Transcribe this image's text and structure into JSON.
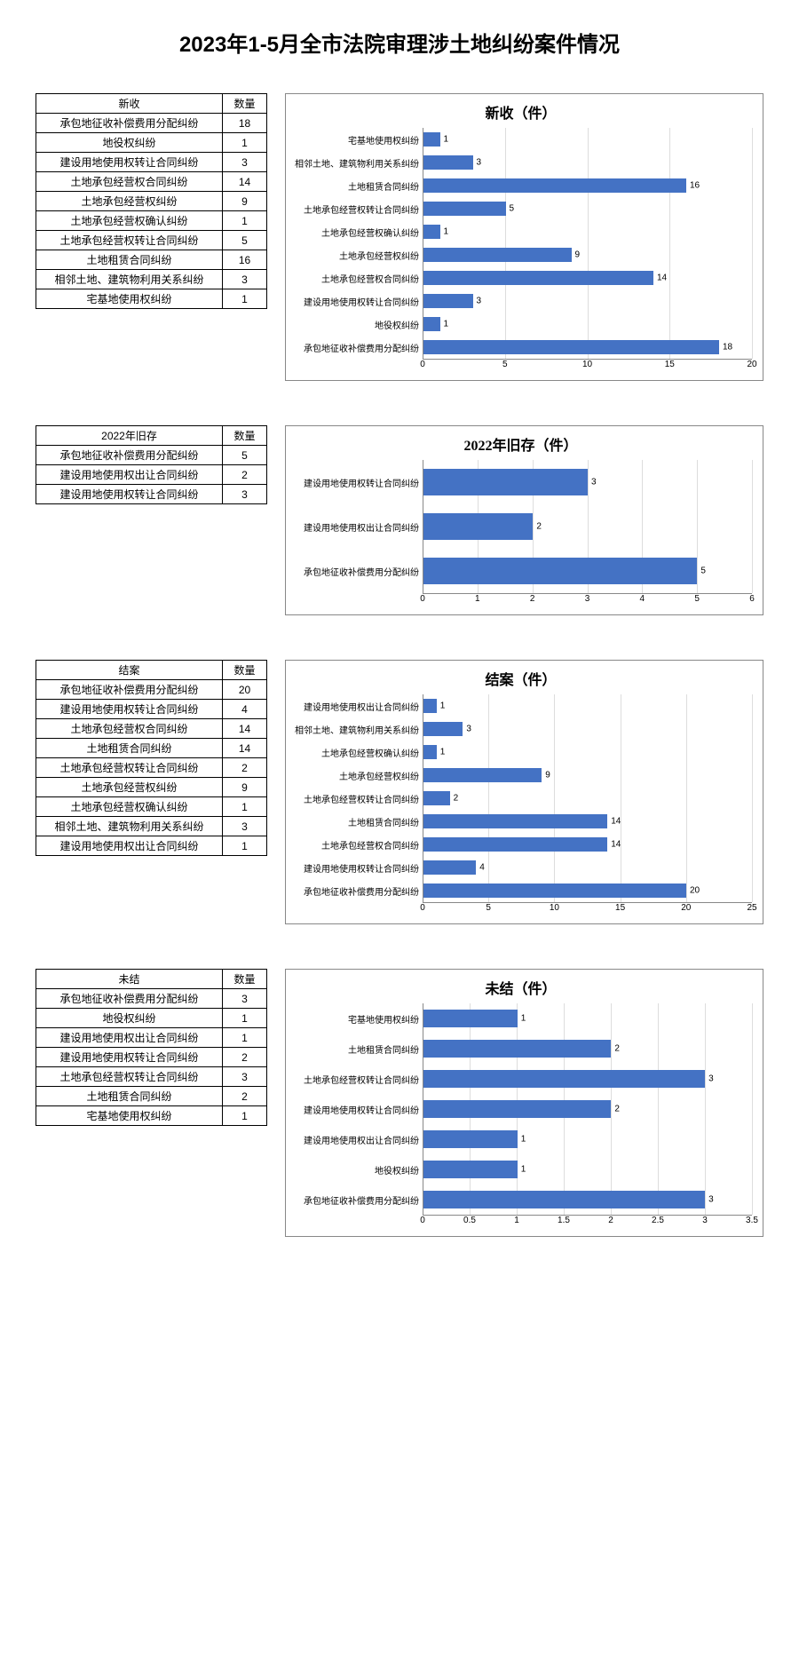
{
  "title": "2023年1-5月全市法院审理涉土地纠纷案件情况",
  "colors": {
    "bar": "#4472c4",
    "grid": "#dddddd",
    "border": "#888888",
    "table_border": "#000000"
  },
  "sections": [
    {
      "table_header": "新收",
      "count_header": "数量",
      "chart_title": "新收（件）",
      "xmax": 20,
      "xtick_step": 5,
      "xticks": [
        0,
        5,
        10,
        15,
        20
      ],
      "bar_row_height": 26,
      "rows": [
        {
          "label": "承包地征收补偿费用分配纠纷",
          "value": 18
        },
        {
          "label": "地役权纠纷",
          "value": 1
        },
        {
          "label": "建设用地使用权转让合同纠纷",
          "value": 3
        },
        {
          "label": "土地承包经营权合同纠纷",
          "value": 14
        },
        {
          "label": "土地承包经营权纠纷",
          "value": 9
        },
        {
          "label": "土地承包经营权确认纠纷",
          "value": 1
        },
        {
          "label": "土地承包经营权转让合同纠纷",
          "value": 5
        },
        {
          "label": "土地租赁合同纠纷",
          "value": 16
        },
        {
          "label": "相邻土地、建筑物利用关系纠纷",
          "value": 3
        },
        {
          "label": "宅基地使用权纠纷",
          "value": 1
        }
      ]
    },
    {
      "table_header": "2022年旧存",
      "count_header": "数量",
      "chart_title": "2022年旧存（件）",
      "xmax": 6,
      "xtick_step": 1,
      "xticks": [
        0,
        1,
        2,
        3,
        4,
        5,
        6
      ],
      "bar_row_height": 50,
      "rows": [
        {
          "label": "承包地征收补偿费用分配纠纷",
          "value": 5
        },
        {
          "label": "建设用地使用权出让合同纠纷",
          "value": 2
        },
        {
          "label": "建设用地使用权转让合同纠纷",
          "value": 3
        }
      ]
    },
    {
      "table_header": "结案",
      "count_header": "数量",
      "chart_title": "结案（件）",
      "xmax": 25,
      "xtick_step": 5,
      "xticks": [
        0,
        5,
        10,
        15,
        20,
        25
      ],
      "bar_row_height": 26,
      "rows": [
        {
          "label": "承包地征收补偿费用分配纠纷",
          "value": 20
        },
        {
          "label": "建设用地使用权转让合同纠纷",
          "value": 4
        },
        {
          "label": "土地承包经营权合同纠纷",
          "value": 14
        },
        {
          "label": "土地租赁合同纠纷",
          "value": 14
        },
        {
          "label": "土地承包经营权转让合同纠纷",
          "value": 2
        },
        {
          "label": "土地承包经营权纠纷",
          "value": 9
        },
        {
          "label": "土地承包经营权确认纠纷",
          "value": 1
        },
        {
          "label": "相邻土地、建筑物利用关系纠纷",
          "value": 3
        },
        {
          "label": "建设用地使用权出让合同纠纷",
          "value": 1
        }
      ]
    },
    {
      "table_header": "未结",
      "count_header": "数量",
      "chart_title": "未结（件）",
      "xmax": 3.5,
      "xtick_step": 0.5,
      "xticks": [
        0,
        0.5,
        1,
        1.5,
        2,
        2.5,
        3,
        3.5
      ],
      "bar_row_height": 34,
      "rows": [
        {
          "label": "承包地征收补偿费用分配纠纷",
          "value": 3
        },
        {
          "label": "地役权纠纷",
          "value": 1
        },
        {
          "label": "建设用地使用权出让合同纠纷",
          "value": 1
        },
        {
          "label": "建设用地使用权转让合同纠纷",
          "value": 2
        },
        {
          "label": "土地承包经营权转让合同纠纷",
          "value": 3
        },
        {
          "label": "土地租赁合同纠纷",
          "value": 2
        },
        {
          "label": "宅基地使用权纠纷",
          "value": 1
        }
      ]
    }
  ]
}
